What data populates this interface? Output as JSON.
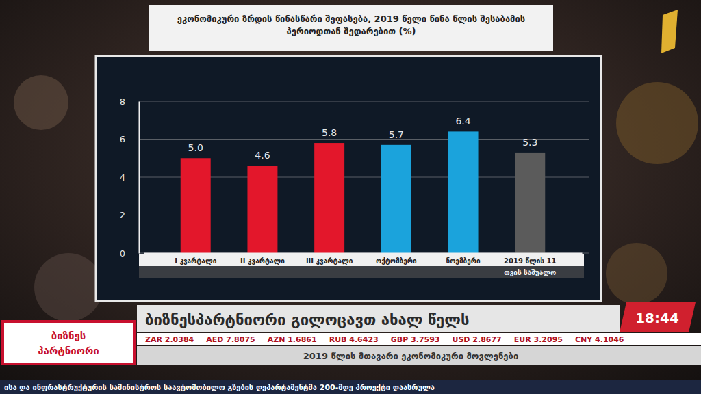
{
  "chart_data": {
    "type": "bar",
    "title": "ეკონომიკური ზრდის წინასწარი შეფასება, 2019 წელი წინა წლის შესაბამის პერიოდთან შედარებით (%)",
    "categories": [
      "I კვარტალი",
      "II კვარტალი",
      "III კვარტალი",
      "ოქტომბერი",
      "ნოემბერი",
      "2019 წლის 11 თვის საშუალო"
    ],
    "values": [
      5.0,
      4.6,
      5.8,
      5.7,
      6.4,
      5.3
    ],
    "value_labels": [
      "5.0",
      "4.6",
      "5.8",
      "5.7",
      "6.4",
      "5.3"
    ],
    "colors": [
      "#e3172b",
      "#e3172b",
      "#e3172b",
      "#1ba3dc",
      "#1ba3dc",
      "#5b5b5b"
    ],
    "ylim": [
      0,
      8
    ],
    "yticks": [
      0,
      2,
      4,
      6,
      8
    ],
    "grid": true,
    "data_labels": true
  },
  "broadcast": {
    "logo": [
      "ბიზნეს",
      "პარტნიორი"
    ],
    "headline": "ბიზნესპარტნიორი გილოცავთ ახალ წელს",
    "time": "18:44",
    "ticker": [
      "ZAR 2.0384",
      "AED 7.8075",
      "AZN 1.6861",
      "RUB 4.6423",
      "GBP 3.7593",
      "USD 2.8677",
      "EUR 3.2095",
      "CNY 4.1046"
    ],
    "subtitle": "2019 წლის მთავარი ეკონომიკური მოვლენები",
    "crawl": "ისა და ინფრასტრუქტურის სამინისტროს საავტომობილო გზების დეპარტამენტმა 200-მდე პროექტი დაასრულა"
  }
}
